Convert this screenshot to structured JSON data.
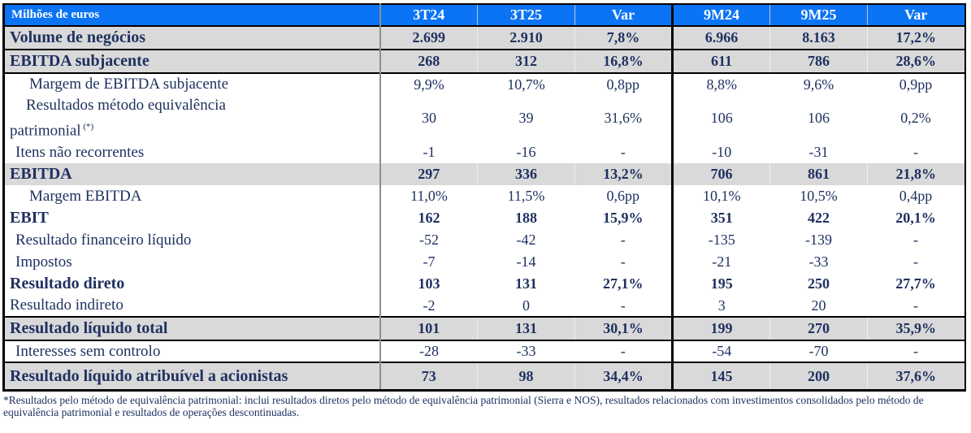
{
  "table": {
    "unit_label": "Milhões de euros",
    "columns": [
      "3T24",
      "3T25",
      "Var",
      "9M24",
      "9M25",
      "Var"
    ],
    "rows": [
      {
        "label": "Volume de negócios",
        "style": "strong bb",
        "values": [
          "2.699",
          "2.910",
          "7,8%",
          "6.966",
          "8.163",
          "17,2%"
        ]
      },
      {
        "label": "EBITDA subjacente",
        "style": "strong bb",
        "values": [
          "268",
          "312",
          "16,8%",
          "611",
          "786",
          "28,6%"
        ]
      },
      {
        "label": "Margem de EBITDA subjacente",
        "style": "sub",
        "values": [
          "9,9%",
          "10,7%",
          "0,8pp",
          "8,8%",
          "9,6%",
          "0,9pp"
        ]
      },
      {
        "label": "Resultados método equivalência patrimonial",
        "sup": "(*)",
        "style": "hang",
        "values": [
          "30",
          "39",
          "31,6%",
          "106",
          "106",
          "0,2%"
        ]
      },
      {
        "label": "Itens não recorrentes",
        "style": "sub2",
        "values": [
          "-1",
          "-16",
          "-",
          "-10",
          "-31",
          "-"
        ]
      },
      {
        "label": "EBITDA",
        "style": "gray",
        "values": [
          "297",
          "336",
          "13,2%",
          "706",
          "861",
          "21,8%"
        ]
      },
      {
        "label": "Margem EBITDA",
        "style": "sub",
        "values": [
          "11,0%",
          "11,5%",
          "0,6pp",
          "10,1%",
          "10,5%",
          "0,4pp"
        ]
      },
      {
        "label": "EBIT",
        "style": "bold",
        "values": [
          "162",
          "188",
          "15,9%",
          "351",
          "422",
          "20,1%"
        ]
      },
      {
        "label": "Resultado financeiro líquido",
        "style": "sub2",
        "values": [
          "-52",
          "-42",
          "-",
          "-135",
          "-139",
          "-"
        ]
      },
      {
        "label": "Impostos",
        "style": "sub2",
        "values": [
          "-7",
          "-14",
          "-",
          "-21",
          "-33",
          "-"
        ]
      },
      {
        "label": "Resultado direto",
        "style": "bold",
        "values": [
          "103",
          "131",
          "27,1%",
          "195",
          "250",
          "27,7%"
        ]
      },
      {
        "label": "Resultado indireto",
        "style": "plain",
        "values": [
          "-2",
          "0",
          "-",
          "3",
          "20",
          "-"
        ]
      },
      {
        "label": "Resultado líquido total",
        "style": "strong bt bb",
        "values": [
          "101",
          "131",
          "30,1%",
          "199",
          "270",
          "35,9%"
        ]
      },
      {
        "label": "Interesses sem controlo",
        "style": "sub2",
        "values": [
          "-28",
          "-33",
          "-",
          "-54",
          "-70",
          "-"
        ]
      },
      {
        "label": "Resultado líquido atribuível a acionistas",
        "style": "strong bt tall",
        "values": [
          "73",
          "98",
          "34,4%",
          "145",
          "200",
          "37,6%"
        ]
      }
    ],
    "footnote": "*Resultados pelo método de equivalência patrimonial: inclui resultados diretos pelo método de equivalência patrimonial (Sierra e NOS), resultados relacionados com investimentos consolidados pelo método de equivalência patrimonial e resultados de operações descontinuadas."
  },
  "colors": {
    "header_bg": "#0b74f5",
    "row_highlight_bg": "#d9d9d9",
    "text": "#1f3160"
  }
}
